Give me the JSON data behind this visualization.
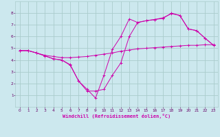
{
  "background_color": "#cce8ee",
  "line_color": "#cc00aa",
  "grid_color": "#aacccc",
  "xlabel": "Windchill (Refroidissement éolien,°C)",
  "xlim": [
    -0.5,
    23.5
  ],
  "ylim": [
    0,
    9
  ],
  "xticks": [
    0,
    1,
    2,
    3,
    4,
    5,
    6,
    7,
    8,
    9,
    10,
    11,
    12,
    13,
    14,
    15,
    16,
    17,
    18,
    19,
    20,
    21,
    22,
    23
  ],
  "yticks": [
    1,
    2,
    3,
    4,
    5,
    6,
    7,
    8
  ],
  "series": [
    {
      "x": [
        0,
        1,
        2,
        3,
        4,
        5,
        6,
        7,
        8,
        9,
        10,
        11,
        12,
        13,
        14,
        15,
        16,
        17,
        18,
        19,
        20,
        21,
        22,
        23
      ],
      "y": [
        4.8,
        4.8,
        4.6,
        4.4,
        4.3,
        4.2,
        4.2,
        4.25,
        4.3,
        4.4,
        4.5,
        4.6,
        4.75,
        4.85,
        4.95,
        5.0,
        5.05,
        5.1,
        5.15,
        5.2,
        5.25,
        5.25,
        5.3,
        5.3
      ]
    },
    {
      "x": [
        0,
        1,
        2,
        3,
        4,
        5,
        6,
        7,
        8,
        9,
        10,
        11,
        12,
        13,
        14,
        15,
        16,
        17,
        18,
        19,
        20,
        21,
        22,
        23
      ],
      "y": [
        4.8,
        4.8,
        4.6,
        4.35,
        4.1,
        4.0,
        3.55,
        2.2,
        1.35,
        1.35,
        1.5,
        2.7,
        3.75,
        6.0,
        7.2,
        7.35,
        7.45,
        7.55,
        8.0,
        7.8,
        6.65,
        6.5,
        5.85,
        5.25
      ]
    },
    {
      "x": [
        0,
        1,
        2,
        3,
        4,
        5,
        6,
        7,
        8,
        9,
        10,
        11,
        12,
        13,
        14,
        15,
        16,
        17,
        18,
        19,
        20,
        21,
        22,
        23
      ],
      "y": [
        4.8,
        4.8,
        4.6,
        4.35,
        4.1,
        4.0,
        3.6,
        2.2,
        1.5,
        0.75,
        2.7,
        4.9,
        6.0,
        7.5,
        7.2,
        7.35,
        7.45,
        7.6,
        7.95,
        7.8,
        6.65,
        6.5,
        5.85,
        5.25
      ]
    }
  ]
}
